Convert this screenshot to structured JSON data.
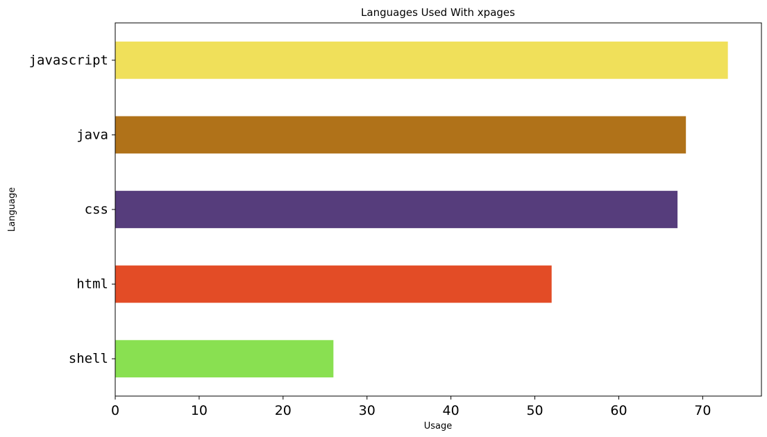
{
  "chart_data": {
    "type": "bar",
    "orientation": "horizontal",
    "title": "Languages Used With xpages",
    "xlabel": "Usage",
    "ylabel": "Language",
    "categories": [
      "javascript",
      "java",
      "css",
      "html",
      "shell"
    ],
    "values": [
      73,
      68,
      67,
      52,
      26
    ],
    "colors": [
      "#f0e05a",
      "#b07219",
      "#563d7c",
      "#e34c26",
      "#89e051"
    ],
    "xlim": [
      0,
      77
    ],
    "x_ticks": [
      0,
      10,
      20,
      30,
      40,
      50,
      60,
      70
    ],
    "grid": false,
    "legend": "none"
  }
}
